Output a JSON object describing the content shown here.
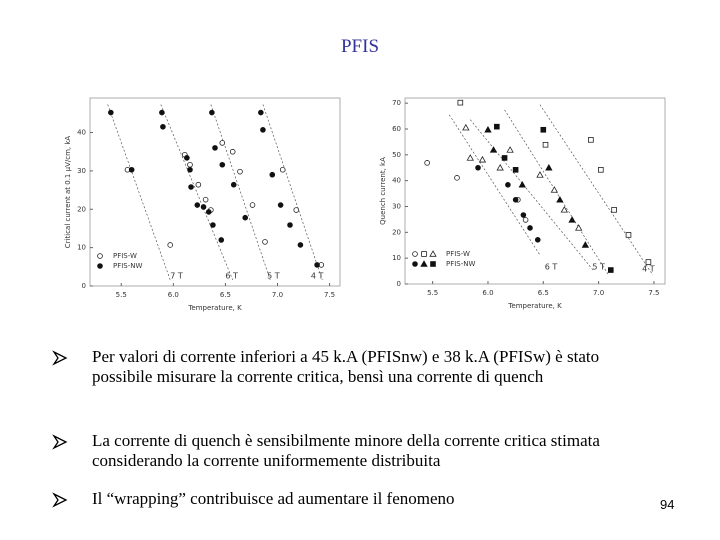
{
  "header": {
    "title": "PFIS"
  },
  "chart_data": [
    {
      "type": "scatter",
      "x_label": "Temperature, K",
      "y_label": "Critical current at 0.1 μV/cm, kA",
      "xlim": [
        5.2,
        7.6
      ],
      "ylim": [
        0,
        49
      ],
      "xticks": [
        5.5,
        {
          "value": 6,
          "label": "6.0"
        },
        6.5,
        {
          "value": 7,
          "label": "7.0"
        },
        7.5
      ],
      "yticks": [
        0,
        10,
        20,
        30,
        40
      ],
      "legend": "lower left",
      "series": [
        {
          "name": "PFIS-W",
          "color": "#222222",
          "filled": false,
          "x": [
            5.56,
            5.97,
            6.11,
            6.16,
            6.24,
            6.31,
            6.36,
            6.47,
            6.57,
            6.64,
            6.76,
            6.88,
            7.05,
            7.18,
            7.42
          ],
          "values": [
            30.3,
            10.7,
            34.2,
            31.6,
            26.4,
            22.5,
            19.8,
            37.3,
            35.0,
            29.8,
            21.1,
            11.5,
            30.3,
            19.8,
            5.5
          ]
        },
        {
          "name": "PFIS-NW",
          "color": "#111111",
          "filled": true,
          "x": [
            5.4,
            5.6,
            5.89,
            5.9,
            6.13,
            6.16,
            6.17,
            6.23,
            6.29,
            6.34,
            6.38,
            6.46,
            6.37,
            6.4,
            6.47,
            6.58,
            6.69,
            6.84,
            6.86,
            6.95,
            7.03,
            7.12,
            7.22,
            7.38
          ],
          "values": [
            45.2,
            30.3,
            45.2,
            41.5,
            33.4,
            30.3,
            25.8,
            21.1,
            20.6,
            19.3,
            15.9,
            12.0,
            45.2,
            36.0,
            31.6,
            26.4,
            17.8,
            45.2,
            40.7,
            29.0,
            21.1,
            15.9,
            10.7,
            5.5
          ]
        }
      ],
      "fit_lines": [
        {
          "x": [
            5.37,
            5.97
          ],
          "y": [
            47.3,
            1.6
          ]
        },
        {
          "x": [
            5.88,
            6.57
          ],
          "y": [
            47.3,
            1.6
          ]
        },
        {
          "x": [
            6.36,
            6.93
          ],
          "y": [
            47.3,
            1.6
          ]
        },
        {
          "x": [
            6.86,
            7.43
          ],
          "y": [
            47.3,
            1.6
          ]
        }
      ],
      "annotations": [
        {
          "text": "7 T",
          "x": 6.03,
          "y": 2.6
        },
        {
          "text": "6 T",
          "x": 6.56,
          "y": 2.6
        },
        {
          "text": "5 T",
          "x": 6.96,
          "y": 2.6
        },
        {
          "text": "4 T",
          "x": 7.38,
          "y": 2.6
        }
      ]
    },
    {
      "type": "scatter",
      "x_label": "Temperature, K",
      "y_label": "Quench current, kA",
      "xlim": [
        5.25,
        7.6
      ],
      "ylim": [
        0,
        72
      ],
      "xticks": [
        5.5,
        {
          "value": 6,
          "label": "6.0"
        },
        6.5,
        {
          "value": 7,
          "label": "7.0"
        },
        7.5
      ],
      "yticks": [
        0,
        10,
        20,
        30,
        40,
        50,
        60,
        70
      ],
      "legend": "lower left",
      "series": [
        {
          "name": "PFIS-W",
          "color": "#222222",
          "filled": false,
          "x": [
            5.45,
            5.72,
            5.75,
            5.8,
            5.84,
            5.95,
            6.11,
            6.2,
            6.27,
            6.34,
            6.47,
            6.52,
            6.6,
            6.69,
            6.82,
            6.93,
            7.02,
            7.14,
            7.27,
            7.45
          ],
          "values": [
            46.9,
            41.1,
            70.2,
            60.5,
            48.8,
            48.1,
            45.0,
            51.9,
            32.6,
            24.8,
            42.2,
            53.9,
            36.4,
            28.7,
            21.7,
            55.8,
            44.2,
            28.7,
            19.0,
            8.5
          ],
          "markers": [
            "circle",
            "circle",
            "square",
            "triangle",
            "triangle",
            "triangle",
            "triangle",
            "triangle",
            "circle",
            "circle",
            "triangle",
            "square",
            "triangle",
            "triangle",
            "triangle",
            "square",
            "square",
            "square",
            "square",
            "square"
          ]
        },
        {
          "name": "PFIS-NW",
          "color": "#111111",
          "filled": true,
          "x": [
            5.91,
            6.0,
            6.08,
            6.05,
            6.15,
            6.25,
            6.31,
            6.18,
            6.25,
            6.32,
            6.38,
            6.45,
            6.5,
            6.55,
            6.65,
            6.76,
            6.88,
            7.11
          ],
          "values": [
            45.0,
            59.7,
            60.9,
            51.9,
            48.8,
            44.2,
            38.4,
            38.4,
            32.6,
            26.7,
            21.7,
            17.1,
            59.7,
            45.0,
            32.6,
            24.8,
            15.1,
            5.4
          ],
          "markers": [
            "circle",
            "triangle",
            "square",
            "triangle",
            "square",
            "square",
            "triangle",
            "circle",
            "circle",
            "circle",
            "circle",
            "circle",
            "square",
            "triangle",
            "triangle",
            "triangle",
            "triangle",
            "square"
          ]
        }
      ],
      "fit_lines": [
        {
          "x": [
            5.65,
            6.47
          ],
          "y": [
            65.5,
            11.2
          ]
        },
        {
          "x": [
            5.84,
            6.95
          ],
          "y": [
            63.6,
            5.4
          ]
        },
        {
          "x": [
            6.15,
            7.09
          ],
          "y": [
            67.4,
            3.5
          ]
        },
        {
          "x": [
            6.47,
            7.49
          ],
          "y": [
            69.4,
            3.5
          ]
        }
      ],
      "annotations": [
        {
          "text": "6 T",
          "x": 6.57,
          "y": 6.6
        },
        {
          "text": "5 T",
          "x": 7.0,
          "y": 6.6
        },
        {
          "text": "4 T",
          "x": 7.45,
          "y": 5.8
        }
      ]
    }
  ],
  "bullets": [
    "Per valori di corrente inferiori a 45 k.A (PFISnw) e 38 k.A (PFISw) è stato possibile misurare la corrente critica, bensì una corrente di quench",
    "La corrente di quench è sensibilmente minore della corrente critica stimata considerando la corrente uniformemente distribuita",
    "Il “wrapping” contribuisce ad aumentare il fenomeno"
  ],
  "footer": {
    "page_number": "94"
  }
}
